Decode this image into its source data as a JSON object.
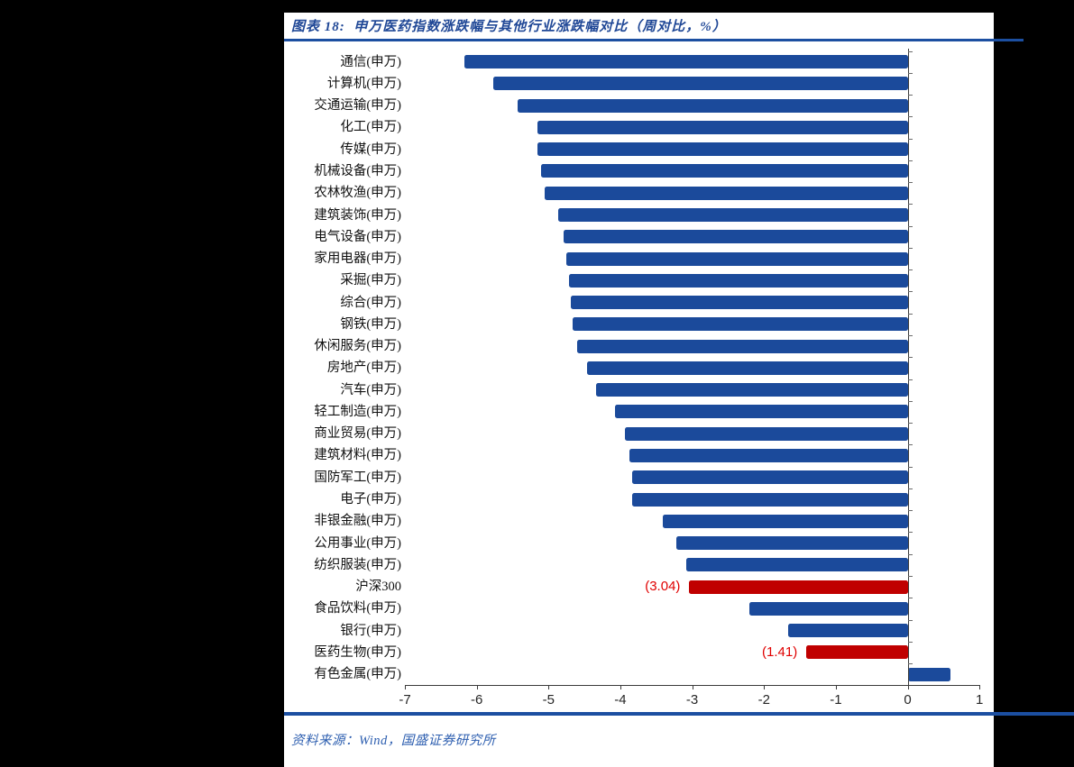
{
  "page": {
    "title": "图表 18:  申万医药指数涨跌幅与其他行业涨跌幅对比（周对比，%）",
    "source": "资料来源：Wind，国盛证券研究所",
    "colors": {
      "bar_blue": "#1B4A9B",
      "bar_red": "#C00000",
      "accent_rule": "#1C4FA1",
      "title_text": "#1F4796",
      "source_text": "#2E5FB0",
      "value_label_red": "#E00000"
    }
  },
  "chart_data": {
    "type": "bar",
    "orientation": "horizontal",
    "title": "申万医药指数涨跌幅与其他行业涨跌幅对比（周对比，%）",
    "xlabel": "",
    "ylabel": "",
    "xlim": [
      -7,
      1
    ],
    "xticks": [
      -7,
      -6,
      -5,
      -4,
      -3,
      -2,
      -1,
      0,
      1
    ],
    "grid": false,
    "legend": "none",
    "categories": [
      "通信(申万)",
      "计算机(申万)",
      "交通运输(申万)",
      "化工(申万)",
      "传媒(申万)",
      "机械设备(申万)",
      "农林牧渔(申万)",
      "建筑装饰(申万)",
      "电气设备(申万)",
      "家用电器(申万)",
      "采掘(申万)",
      "综合(申万)",
      "钢铁(申万)",
      "休闲服务(申万)",
      "房地产(申万)",
      "汽车(申万)",
      "轻工制造(申万)",
      "商业贸易(申万)",
      "建筑材料(申万)",
      "国防军工(申万)",
      "电子(申万)",
      "非银金融(申万)",
      "公用事业(申万)",
      "纺织服装(申万)",
      "沪深300",
      "食品饮料(申万)",
      "银行(申万)",
      "医药生物(申万)",
      "有色金属(申万)"
    ],
    "values": [
      -6.17,
      -5.77,
      -5.43,
      -5.16,
      -5.15,
      -5.1,
      -5.06,
      -4.87,
      -4.79,
      -4.75,
      -4.71,
      -4.69,
      -4.66,
      -4.6,
      -4.47,
      -4.34,
      -4.08,
      -3.94,
      -3.88,
      -3.84,
      -3.83,
      -3.41,
      -3.22,
      -3.08,
      -3.04,
      -2.2,
      -1.66,
      -1.41,
      0.59
    ],
    "bar_color_keys": [
      "blue",
      "blue",
      "blue",
      "blue",
      "blue",
      "blue",
      "blue",
      "blue",
      "blue",
      "blue",
      "blue",
      "blue",
      "blue",
      "blue",
      "blue",
      "blue",
      "blue",
      "blue",
      "blue",
      "blue",
      "blue",
      "blue",
      "blue",
      "blue",
      "red",
      "blue",
      "blue",
      "red",
      "blue"
    ],
    "data_labels": [
      "",
      "",
      "",
      "",
      "",
      "",
      "",
      "",
      "",
      "",
      "",
      "",
      "",
      "",
      "",
      "",
      "",
      "",
      "",
      "",
      "",
      "",
      "",
      "",
      "(3.04)",
      "",
      "",
      "(1.41)",
      ""
    ]
  }
}
